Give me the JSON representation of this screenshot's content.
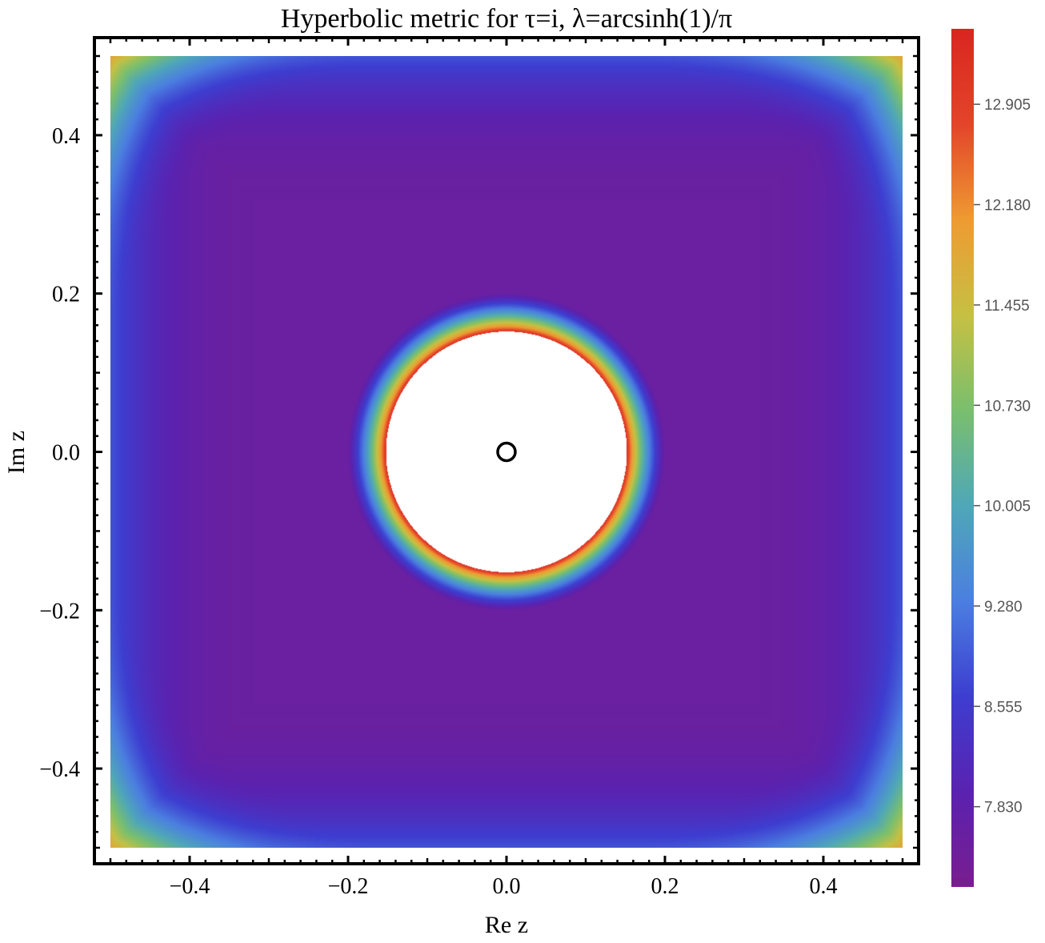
{
  "chart_data": {
    "type": "heatmap",
    "title": "Hyperbolic metric for τ=i, λ=arcsinh(1)/π",
    "xlabel": "Re z",
    "ylabel": "Im z",
    "xlim": [
      -0.5,
      0.5
    ],
    "ylim": [
      -0.5,
      0.5
    ],
    "x_ticks": [
      -0.4,
      -0.2,
      0.0,
      0.2,
      0.4
    ],
    "x_tick_labels": [
      "−0.4",
      "−0.2",
      "0.0",
      "0.2",
      "0.4"
    ],
    "y_ticks": [
      0.4,
      0.2,
      0.0,
      -0.2,
      -0.4
    ],
    "y_tick_labels": [
      "0.4",
      "0.2",
      "0.0",
      "−0.2",
      "−0.4"
    ],
    "colorbar": {
      "min": 7.25,
      "max": 13.45,
      "ticks": [
        12.905,
        12.18,
        11.455,
        10.73,
        10.005,
        9.28,
        8.555,
        7.83
      ],
      "tick_labels": [
        "12.905",
        "12.180",
        "11.455",
        "10.730",
        "10.005",
        "9.280",
        "8.555",
        "7.830"
      ],
      "colors": [
        "#7a1d8f",
        "#5a22b0",
        "#3d3ed0",
        "#4b7fe0",
        "#4fa7b8",
        "#7abf6e",
        "#c6c043",
        "#ee9b32",
        "#e3452a",
        "#d92620"
      ]
    },
    "features": {
      "excluded_disk_radius": 0.152,
      "marker": {
        "x": 0.0,
        "y": 0.0,
        "shape": "open-circle"
      }
    },
    "grid": false
  }
}
